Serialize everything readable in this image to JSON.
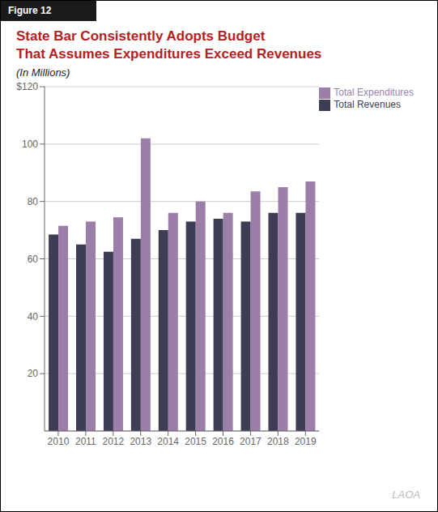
{
  "chart_data": {
    "type": "bar",
    "title": "State Bar Consistently Adopts Budget\nThat Assumes Expenditures Exceed Revenues",
    "subtitle": "(In Millions)",
    "annotations": [
      "Figure 12",
      "LAOA"
    ],
    "categories": [
      "2010",
      "2011",
      "2012",
      "2013",
      "2014",
      "2015",
      "2016",
      "2017",
      "2018",
      "2019"
    ],
    "series": [
      {
        "name": "Total Revenues",
        "color": "#3d3d54",
        "values": [
          68.5,
          65.0,
          62.5,
          67.0,
          70.0,
          73.0,
          74.0,
          73.0,
          76.0,
          76.0
        ]
      },
      {
        "name": "Total Expenditures",
        "color": "#9b7fa8",
        "values": [
          71.5,
          73.0,
          74.5,
          102.0,
          76.0,
          80.0,
          76.0,
          83.5,
          85.0,
          87.0
        ]
      }
    ],
    "ylim": [
      0,
      120
    ],
    "yticks": [
      20,
      40,
      60,
      80,
      100,
      {
        "value": 120,
        "label": "$120"
      }
    ],
    "grid": true,
    "legend": "upper right"
  }
}
